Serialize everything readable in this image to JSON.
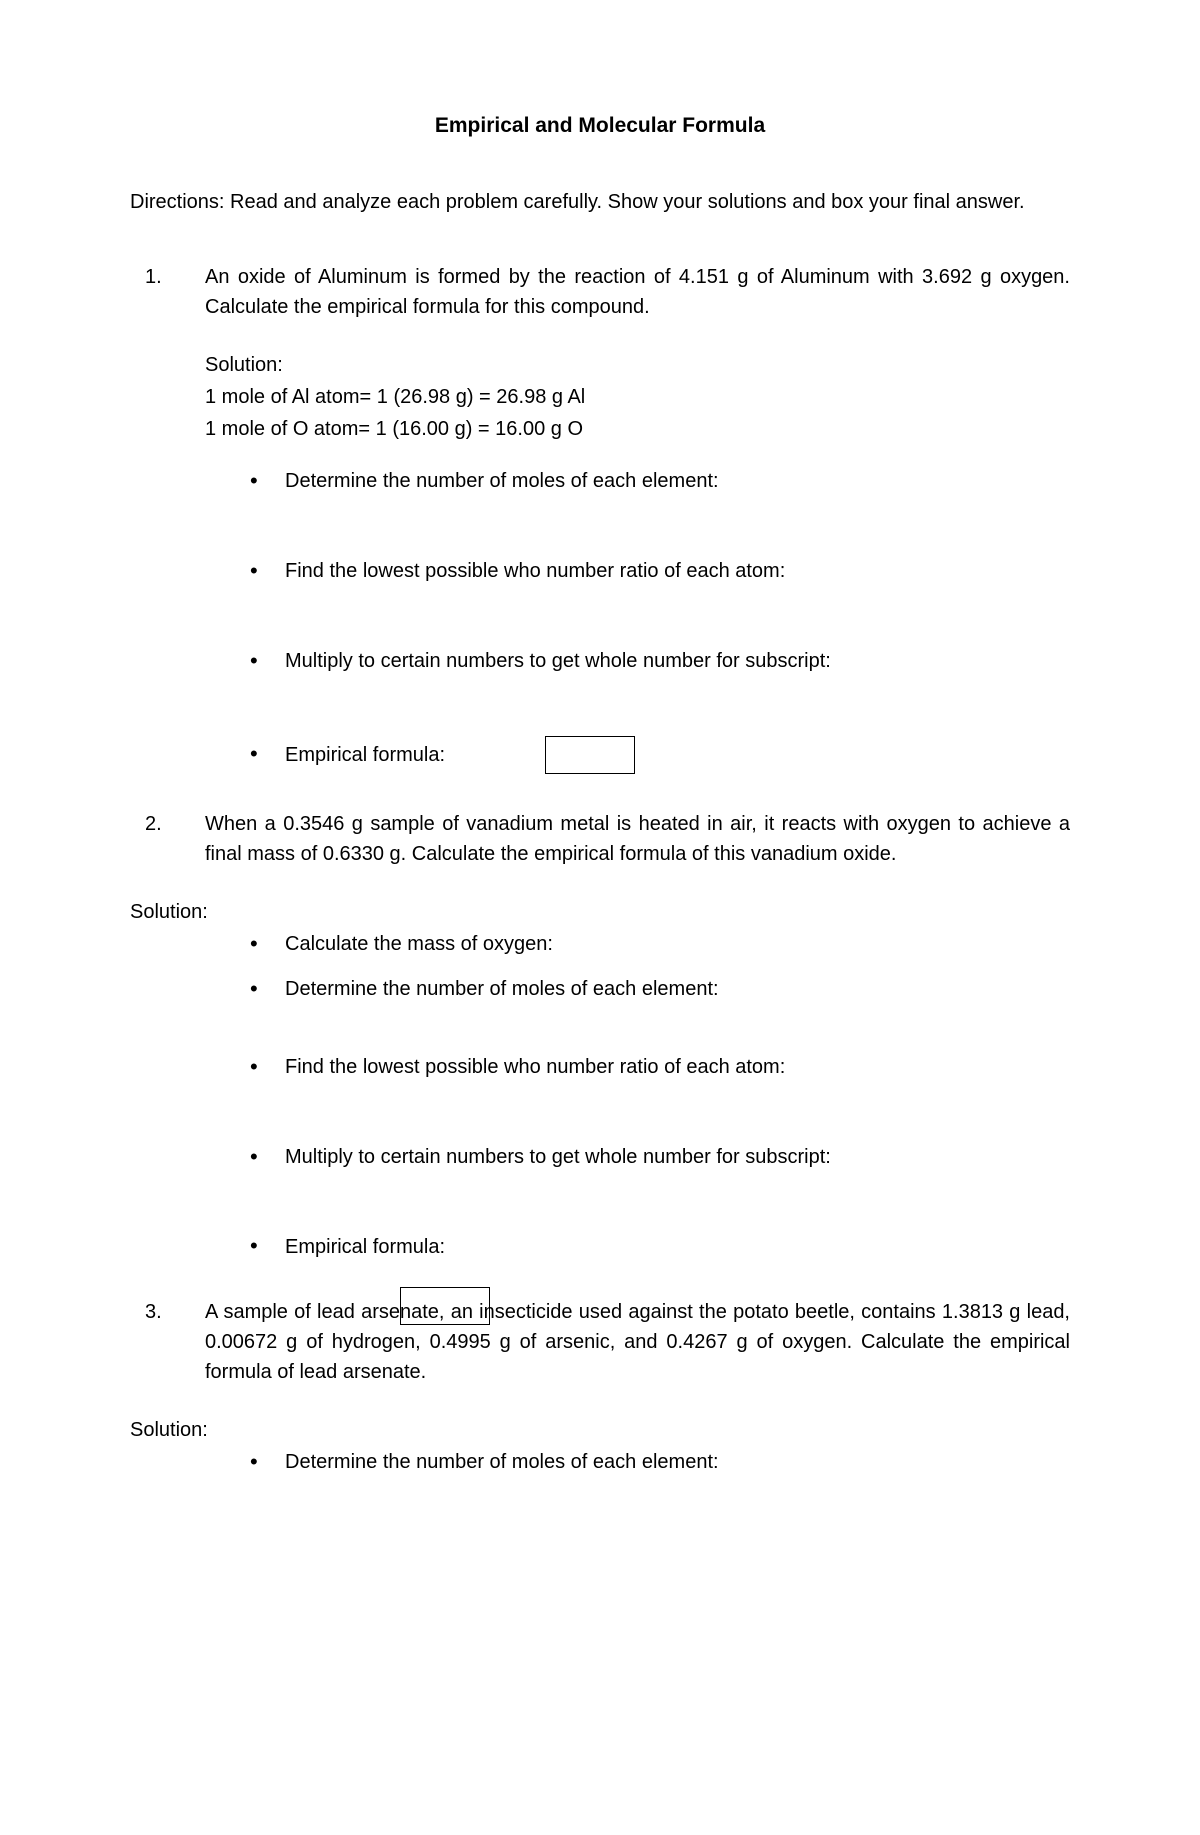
{
  "title": "Empirical and Molecular Formula",
  "directions": "Directions: Read and analyze each problem carefully. Show your solutions and box your final answer.",
  "problems": [
    {
      "num": "1.",
      "text": "An oxide of Aluminum is formed by the reaction of 4.151 g of Aluminum with 3.692 g oxygen. Calculate the empirical formula for this compound.",
      "solution_label": "Solution:",
      "solution_lines": [
        "1 mole of Al atom= 1 (26.98 g) = 26.98 g Al",
        "1 mole of O atom= 1 (16.00 g) = 16.00 g O"
      ],
      "bullets": [
        "Determine the number of moles of each element:",
        "Find the lowest possible who number ratio of each atom:",
        "Multiply to certain numbers to get whole number for subscript:",
        "Empirical formula:"
      ]
    },
    {
      "num": "2.",
      "text": "When a 0.3546 g sample of vanadium metal is heated in air, it reacts with oxygen to achieve a final mass of 0.6330 g. Calculate the empirical formula of this vanadium oxide.",
      "solution_label": "Solution:",
      "bullets": [
        "Calculate the mass of oxygen:",
        "Determine the number of moles of each element:",
        "Find the lowest possible who number ratio of each atom:",
        "Multiply to certain numbers to get whole number for subscript:",
        "Empirical formula:"
      ]
    },
    {
      "num": "3.",
      "text": "A sample of lead arsenate, an insecticide used against the potato beetle, contains 1.3813 g lead, 0.00672 g of hydrogen, 0.4995 g of arsenic, and 0.4267 g of oxygen. Calculate the empirical formula of lead arsenate.",
      "solution_label": "Solution:",
      "bullets": [
        "Determine the number of moles of each element:"
      ]
    }
  ]
}
